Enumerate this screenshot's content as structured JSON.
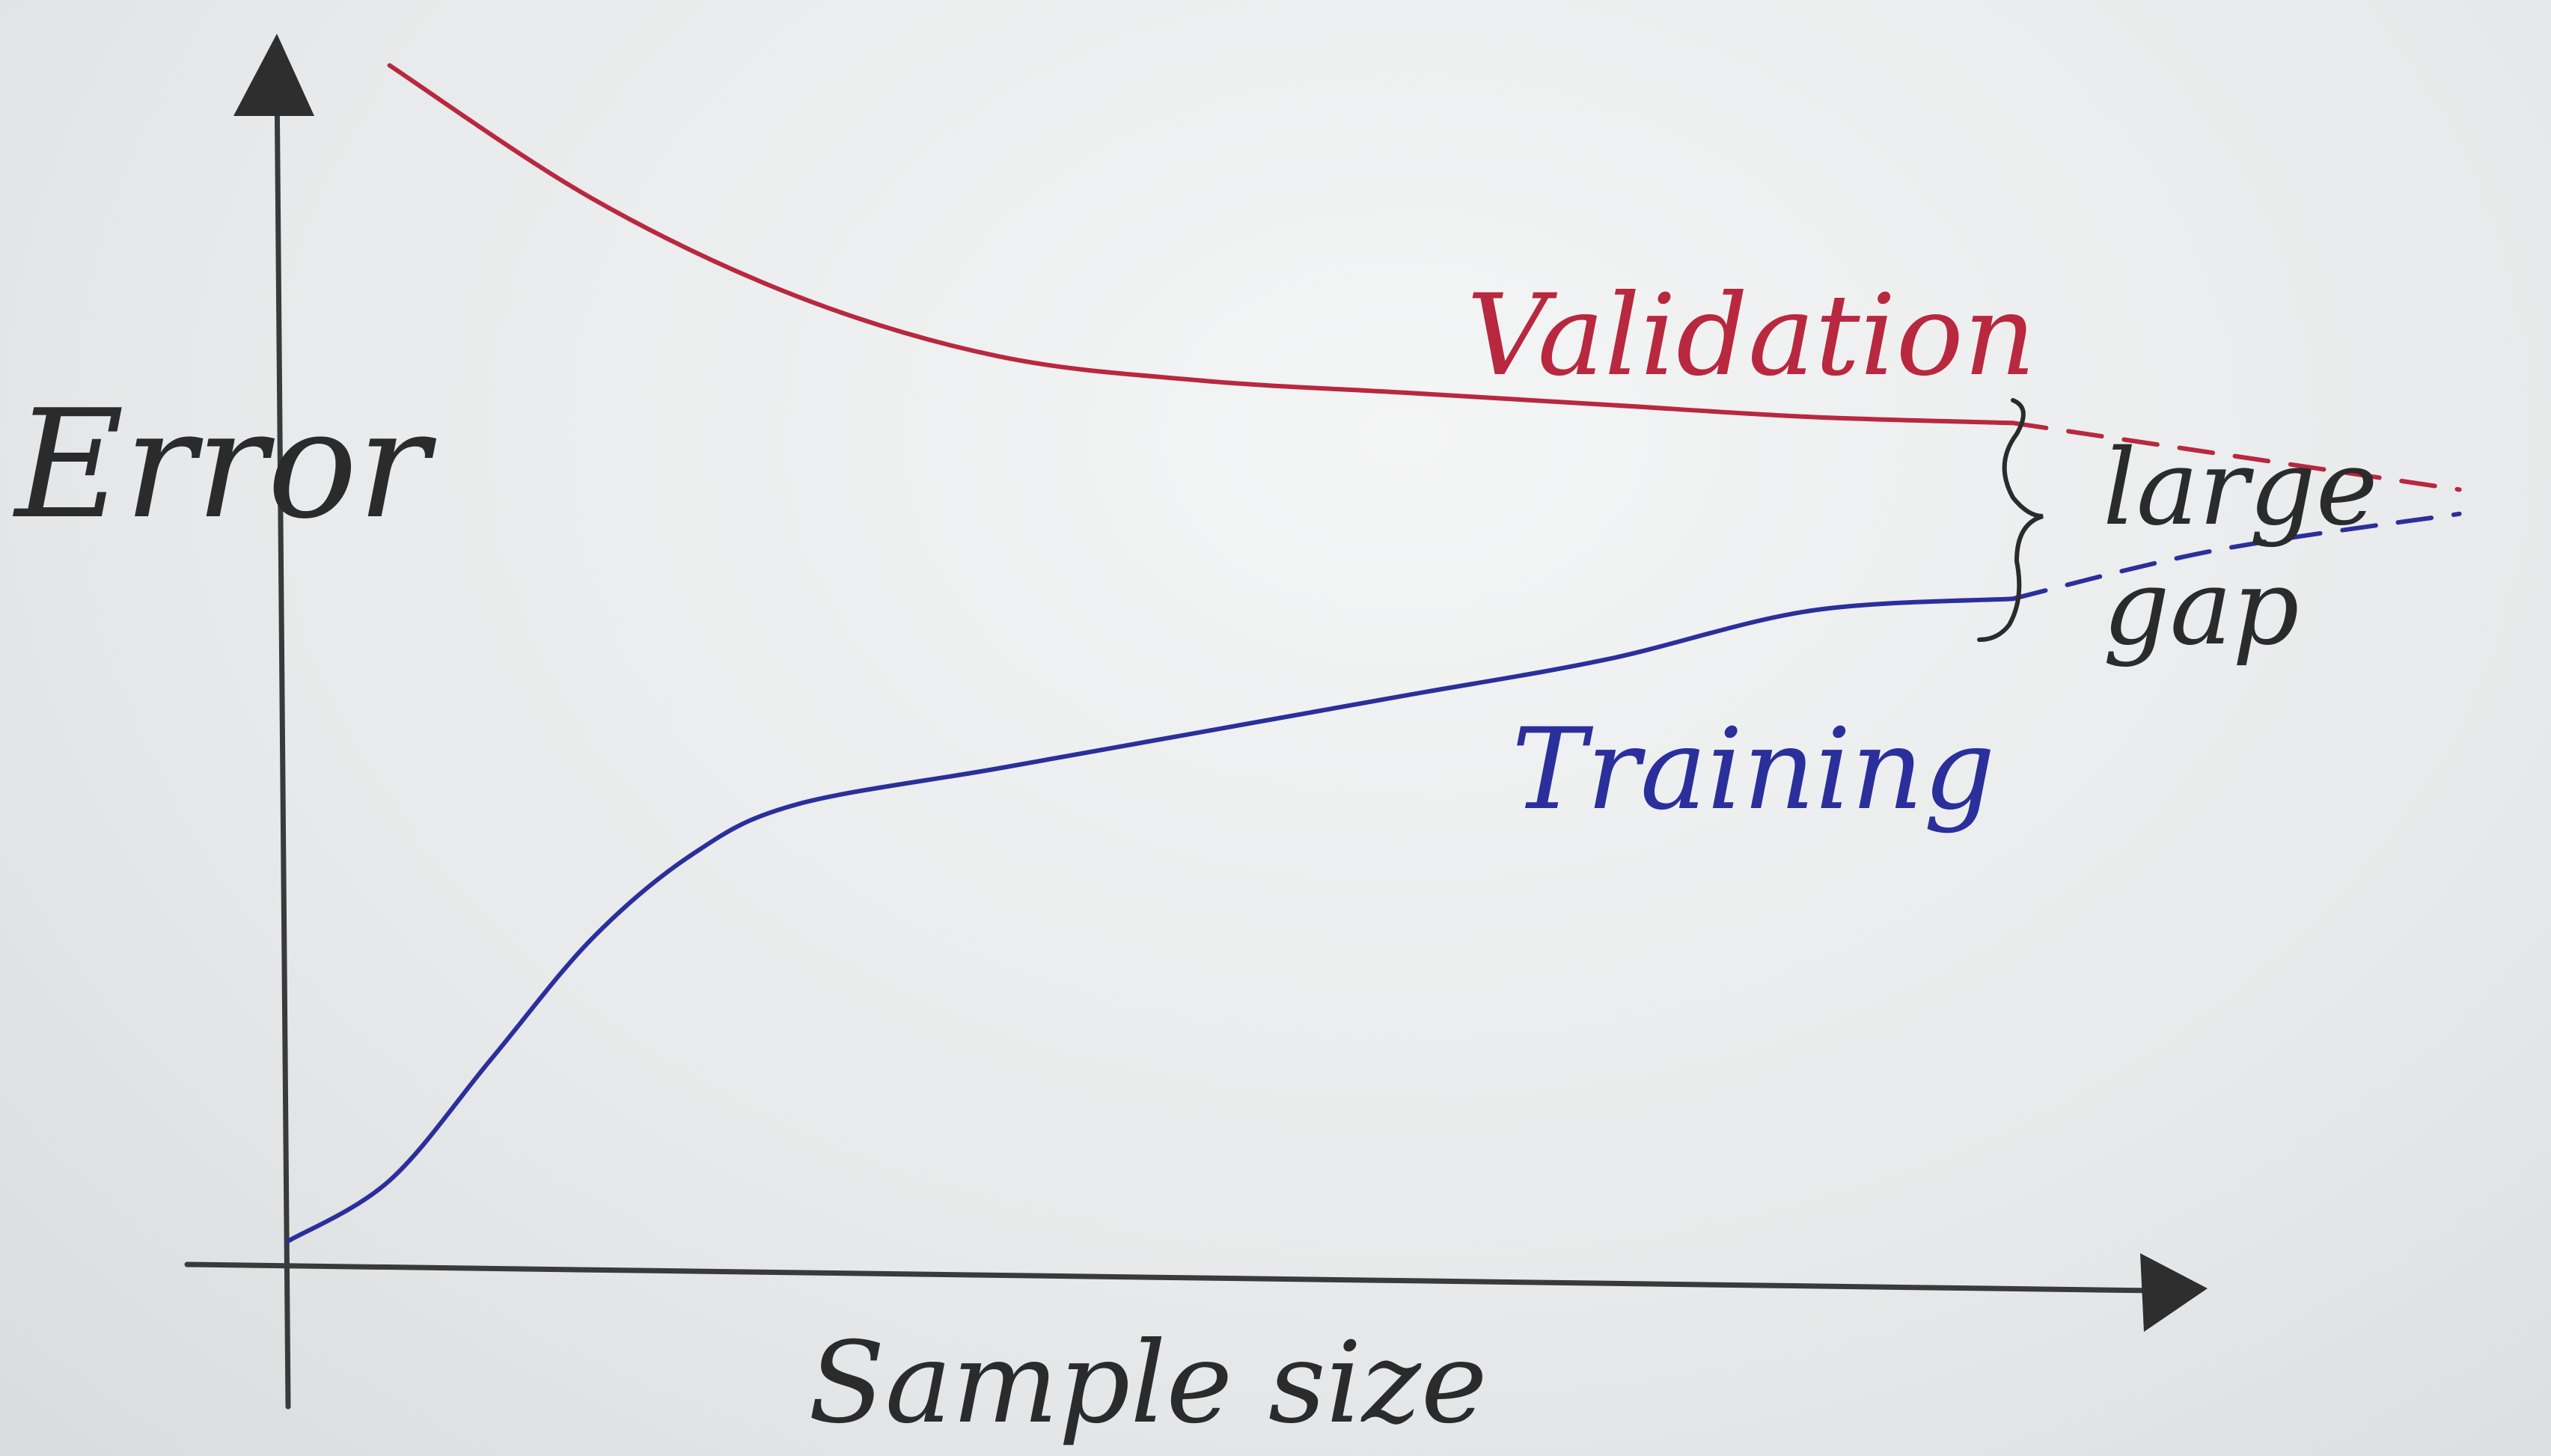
{
  "chart_data": {
    "type": "line",
    "title": "",
    "xlabel": "Sample size",
    "ylabel": "Error",
    "xlim": [
      0,
      10
    ],
    "ylim": [
      0,
      10
    ],
    "grid": false,
    "legend": "none",
    "series": [
      {
        "name": "Validation",
        "color": "#b8283f",
        "x": [
          0.5,
          1.5,
          2.5,
          3.5,
          4.5,
          5.5,
          6.5,
          7.5,
          8.5
        ],
        "y": [
          9.8,
          8.7,
          7.9,
          7.4,
          7.2,
          7.1,
          7.0,
          6.9,
          6.85
        ],
        "extension": {
          "x": [
            8.5,
            9.5,
            10.7
          ],
          "y": [
            6.85,
            6.6,
            6.3
          ]
        }
      },
      {
        "name": "Training",
        "color": "#2b2f9b",
        "x": [
          0.0,
          0.5,
          1.0,
          1.5,
          2.0,
          2.5,
          3.5,
          4.5,
          5.5,
          6.5,
          7.5,
          8.5
        ],
        "y": [
          0.1,
          0.6,
          1.6,
          2.6,
          3.3,
          3.7,
          4.0,
          4.3,
          4.6,
          4.9,
          5.3,
          5.4
        ],
        "extension": {
          "x": [
            8.5,
            9.5,
            10.7
          ],
          "y": [
            5.4,
            5.8,
            6.1
          ]
        }
      }
    ],
    "annotations": [
      {
        "text": "large",
        "position": "right of gap brace"
      },
      {
        "text": "gap",
        "position": "right of gap brace"
      }
    ]
  }
}
